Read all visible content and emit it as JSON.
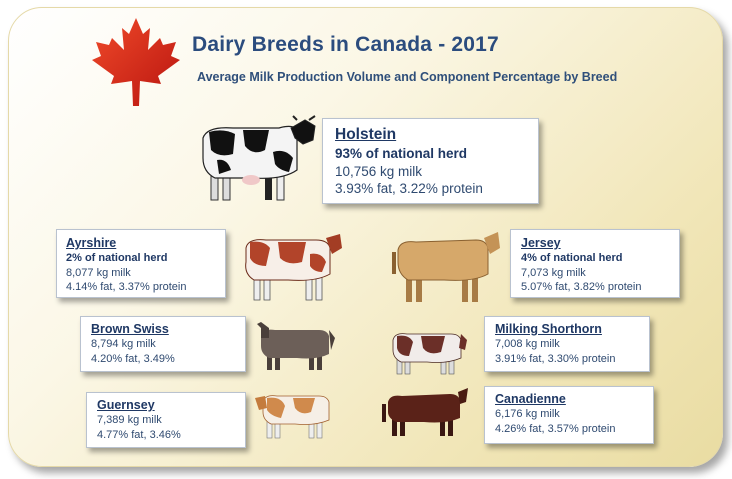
{
  "title": "Dairy Breeds in Canada - 2017",
  "subtitle": "Average Milk Production Volume and Component Percentage by Breed",
  "colors": {
    "title": "#2b4c7e",
    "leaf": "#d9261c",
    "frame_gradient_end": "#e9dca2"
  },
  "icons": {
    "logo": "maple-leaf-icon"
  },
  "breeds": {
    "holstein": {
      "name": "Holstein",
      "share": "93%  of national herd",
      "milk": "10,756 kg milk",
      "components": "3.93% fat, 3.22% protein"
    },
    "ayrshire": {
      "name": "Ayrshire",
      "share": "2% of national herd",
      "milk": "8,077 kg milk",
      "components": "4.14% fat, 3.37% protein"
    },
    "jersey": {
      "name": "Jersey",
      "share": "4% of national herd",
      "milk": "7,073 kg milk",
      "components": "5.07% fat, 3.82%  protein"
    },
    "brown_swiss": {
      "name": "Brown Swiss",
      "milk": "8,794 kg milk",
      "components": "4.20% fat, 3.49%"
    },
    "milking_shorthorn": {
      "name": "Milking Shorthorn",
      "milk": "7,008 kg milk",
      "components": "3.91% fat, 3.30% protein"
    },
    "guernsey": {
      "name": "Guernsey",
      "milk": "7,389 kg milk",
      "components": "4.77% fat, 3.46%"
    },
    "canadienne": {
      "name": "Canadienne",
      "milk": "6,176 kg milk",
      "components": "4.26% fat, 3.57% protein"
    }
  }
}
